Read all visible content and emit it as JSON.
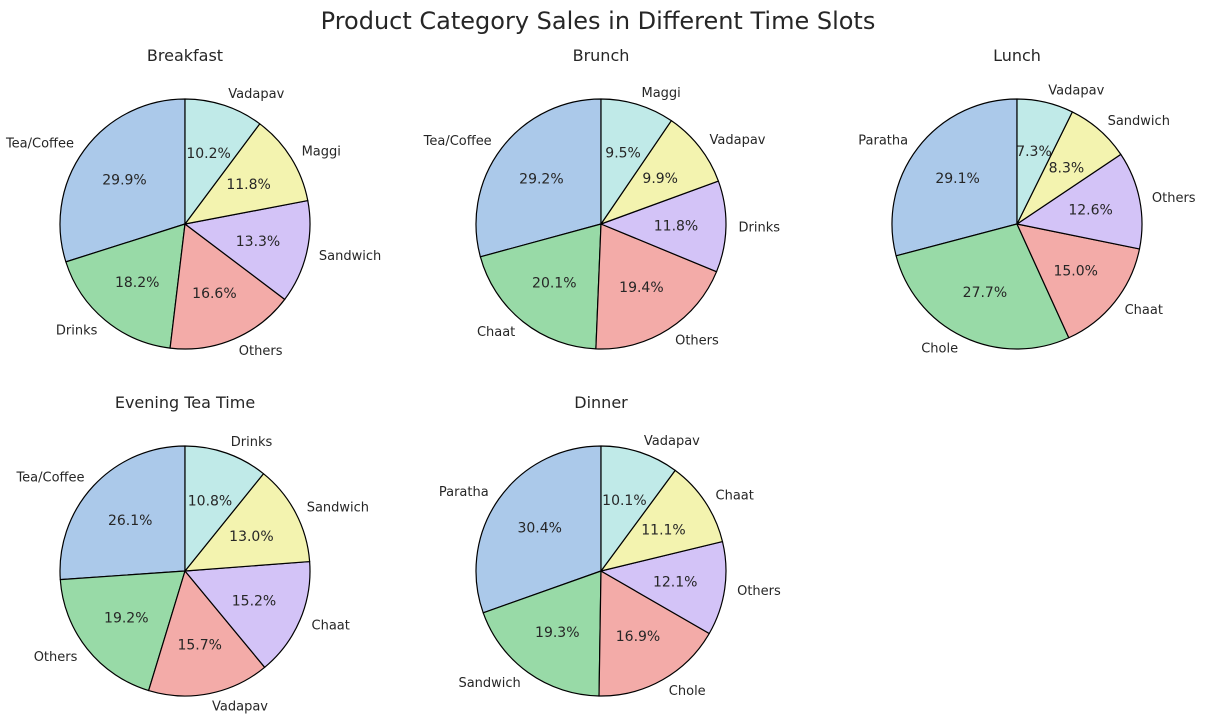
{
  "figure_title": "Product Category Sales in Different Time Slots",
  "colors": {
    "palette": [
      "#abc9ea",
      "#98daa7",
      "#f3aba8",
      "#d3c3f7",
      "#f3f3af",
      "#c0eae8"
    ],
    "edge": "#000000",
    "text": "#262626",
    "background": "#ffffff"
  },
  "chart_data": [
    {
      "type": "pie",
      "title": "Breakfast",
      "start_angle_deg": 90,
      "direction": "counterclockwise",
      "labels": [
        "Tea/Coffee",
        "Drinks",
        "Others",
        "Sandwich",
        "Maggi",
        "Vadapav"
      ],
      "values": [
        29.9,
        18.2,
        16.6,
        13.3,
        11.8,
        10.2
      ],
      "pct_labels": [
        "29.9%",
        "18.2%",
        "16.6%",
        "13.3%",
        "11.8%",
        "10.2%"
      ]
    },
    {
      "type": "pie",
      "title": "Brunch",
      "start_angle_deg": 90,
      "direction": "counterclockwise",
      "labels": [
        "Tea/Coffee",
        "Chaat",
        "Others",
        "Drinks",
        "Vadapav",
        "Maggi"
      ],
      "values": [
        29.2,
        20.1,
        19.4,
        11.8,
        9.9,
        9.5
      ],
      "pct_labels": [
        "29.2%",
        "20.1%",
        "19.4%",
        "11.8%",
        "9.9%",
        "9.5%"
      ]
    },
    {
      "type": "pie",
      "title": "Lunch",
      "start_angle_deg": 90,
      "direction": "counterclockwise",
      "labels": [
        "Paratha",
        "Chole",
        "Chaat",
        "Others",
        "Sandwich",
        "Vadapav"
      ],
      "values": [
        29.1,
        27.7,
        15.0,
        12.6,
        8.3,
        7.3
      ],
      "pct_labels": [
        "29.1%",
        "27.7%",
        "15.0%",
        "12.6%",
        "8.3%",
        "7.3%"
      ]
    },
    {
      "type": "pie",
      "title": "Evening Tea Time",
      "start_angle_deg": 90,
      "direction": "counterclockwise",
      "labels": [
        "Tea/Coffee",
        "Others",
        "Vadapav",
        "Chaat",
        "Sandwich",
        "Drinks"
      ],
      "values": [
        26.1,
        19.2,
        15.7,
        15.2,
        13.0,
        10.8
      ],
      "pct_labels": [
        "26.1%",
        "19.2%",
        "15.7%",
        "15.2%",
        "13.0%",
        "10.8%"
      ]
    },
    {
      "type": "pie",
      "title": "Dinner",
      "start_angle_deg": 90,
      "direction": "counterclockwise",
      "labels": [
        "Paratha",
        "Sandwich",
        "Chole",
        "Others",
        "Chaat",
        "Vadapav"
      ],
      "values": [
        30.4,
        19.3,
        16.9,
        12.1,
        11.1,
        10.1
      ],
      "pct_labels": [
        "30.4%",
        "19.3%",
        "16.9%",
        "12.1%",
        "11.1%",
        "10.1%"
      ]
    }
  ]
}
